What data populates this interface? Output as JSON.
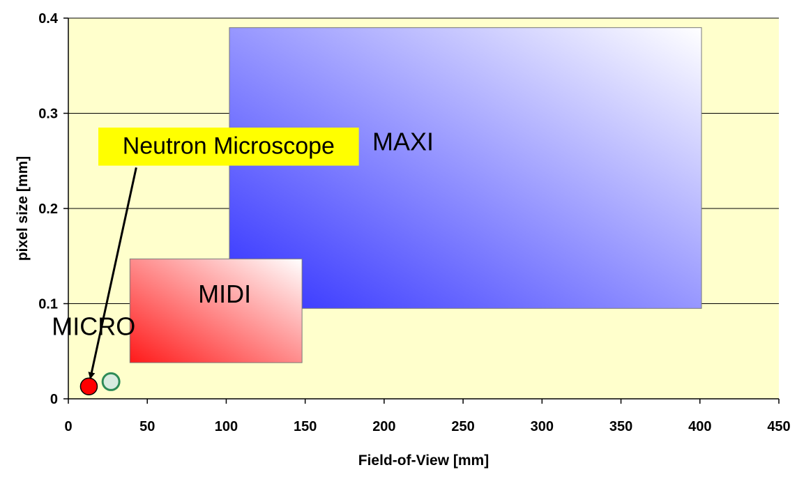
{
  "chart_data": {
    "type": "scatter",
    "xlabel": "Field-of-View [mm]",
    "ylabel": "pixel size [mm]",
    "xlim": [
      0,
      450
    ],
    "ylim": [
      0,
      0.4
    ],
    "xticks": [
      "0",
      "50",
      "100",
      "150",
      "200",
      "250",
      "300",
      "350",
      "400",
      "450"
    ],
    "yticks": [
      "0",
      "0.1",
      "0.2",
      "0.3",
      "0.4"
    ],
    "grid": "horizontal",
    "regions": [
      {
        "label": "MAXI",
        "x_range": [
          102,
          401
        ],
        "y_range": [
          0.095,
          0.39
        ],
        "gradient": [
          "#2f2fff",
          "#ffffff"
        ]
      },
      {
        "label": "MIDI",
        "x_range": [
          39,
          148
        ],
        "y_range": [
          0.038,
          0.147
        ],
        "gradient": [
          "#ff1a1a",
          "#ffffff"
        ]
      }
    ],
    "labels": [
      {
        "text": "MICRO",
        "x": 16,
        "y": 0.074
      }
    ],
    "points": [
      {
        "x": 13,
        "y": 0.013,
        "color": "#ff0000",
        "edge": "#000000"
      },
      {
        "x": 27,
        "y": 0.018,
        "color": "#d8ebe0",
        "edge": "#2e8b57"
      }
    ],
    "annotations": [
      {
        "text": "Neutron Microscope",
        "box_x": [
          19,
          184
        ],
        "box_y": [
          0.245,
          0.285
        ],
        "arrow_from": [
          43,
          0.243
        ],
        "arrow_to": [
          14,
          0.022
        ],
        "background": "#ffff00"
      }
    ],
    "colors": {
      "plot_background": "#ffffcc",
      "gridline": "#000000"
    }
  }
}
